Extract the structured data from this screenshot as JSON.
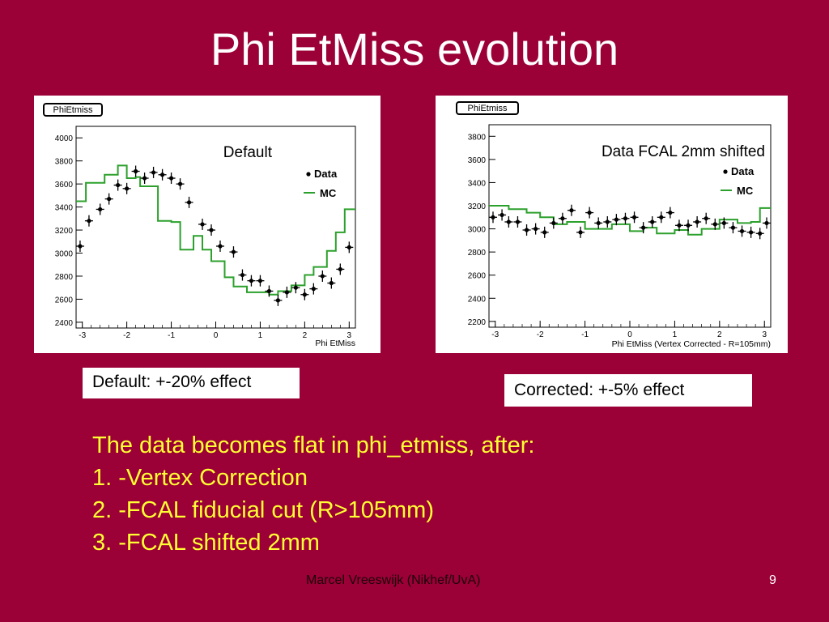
{
  "slide": {
    "title": "Phi EtMiss evolution",
    "background_color": "#9b0036",
    "text_color": "#ffff33",
    "note_left": "Default:  +-20% effect",
    "note_right": "Corrected:  +-5% effect",
    "body_lines": [
      "The data becomes flat in phi_etmiss, after:",
      "1. -Vertex Correction",
      "2. -FCAL fiducial cut (R>105mm)",
      "3. -FCAL shifted 2mm"
    ],
    "footer": "Marcel Vreeswijk (Nikhef/UvA)",
    "page_number": "9"
  },
  "chart_data": [
    {
      "type": "line",
      "title": "PhiEtmiss",
      "annotation": "Default",
      "xlabel": "Phi EtMiss",
      "ylabel": "",
      "xlim": [
        -3.14,
        3.14
      ],
      "ylim": [
        2350,
        4100
      ],
      "xticks": [
        -3,
        -2,
        -1,
        0,
        1,
        2,
        3
      ],
      "yticks": [
        2400,
        2600,
        2800,
        3000,
        3200,
        3400,
        3600,
        3800,
        4000
      ],
      "legend": {
        "placement": "top-right",
        "entries": [
          "Data",
          "MC"
        ]
      },
      "colors": {
        "data": "#000000",
        "mc": "#2ca02c"
      },
      "mc_bin_edges": [
        -3.14,
        -2.92,
        -2.5,
        -2.2,
        -2.0,
        -1.8,
        -1.7,
        -1.3,
        -1.0,
        -0.8,
        -0.5,
        -0.3,
        -0.1,
        0.2,
        0.4,
        0.7,
        1.0,
        1.2,
        1.4,
        1.7,
        2.0,
        2.2,
        2.5,
        2.7,
        2.9,
        3.14
      ],
      "mc_values": [
        3450,
        3610,
        3680,
        3760,
        3650,
        3660,
        3580,
        3280,
        3270,
        3030,
        3150,
        3030,
        2930,
        2790,
        2710,
        2660,
        2660,
        2640,
        2670,
        2720,
        2810,
        2880,
        3020,
        3180,
        3380
      ],
      "series": [
        {
          "name": "Data",
          "x": [
            -3.05,
            -2.85,
            -2.6,
            -2.4,
            -2.2,
            -2.0,
            -1.8,
            -1.6,
            -1.4,
            -1.2,
            -1.0,
            -0.8,
            -0.6,
            -0.3,
            -0.1,
            0.1,
            0.4,
            0.6,
            0.8,
            1.0,
            1.2,
            1.4,
            1.6,
            1.8,
            2.0,
            2.2,
            2.4,
            2.6,
            2.8,
            3.0
          ],
          "y": [
            3060,
            3280,
            3380,
            3470,
            3590,
            3560,
            3710,
            3650,
            3700,
            3680,
            3650,
            3600,
            3440,
            3250,
            3200,
            3060,
            3010,
            2810,
            2760,
            2760,
            2670,
            2590,
            2660,
            2700,
            2640,
            2690,
            2800,
            2740,
            2860,
            3050
          ]
        }
      ]
    },
    {
      "type": "line",
      "title": "PhiEtmiss",
      "annotation": "Data FCAL 2mm shifted",
      "xlabel": "Phi EtMiss (Vertex Corrected - R=105mm)",
      "ylabel": "",
      "xlim": [
        -3.14,
        3.14
      ],
      "ylim": [
        2150,
        3900
      ],
      "xticks": [
        -3,
        -2,
        -1,
        0,
        1,
        2,
        3
      ],
      "yticks": [
        2200,
        2400,
        2600,
        2800,
        3000,
        3200,
        3400,
        3600,
        3800
      ],
      "legend": {
        "placement": "top-right",
        "entries": [
          "Data",
          "MC"
        ]
      },
      "colors": {
        "data": "#000000",
        "mc": "#2ca02c"
      },
      "mc_bin_edges": [
        -3.14,
        -2.7,
        -2.3,
        -2.0,
        -1.7,
        -1.4,
        -1.0,
        -0.7,
        -0.4,
        0.0,
        0.3,
        0.6,
        1.0,
        1.3,
        1.6,
        2.0,
        2.4,
        2.7,
        2.9,
        3.14
      ],
      "mc_values": [
        3200,
        3170,
        3140,
        3100,
        3040,
        3060,
        3000,
        3000,
        3040,
        2980,
        3010,
        2960,
        2990,
        2950,
        3000,
        3080,
        3050,
        3060,
        3180
      ],
      "series": [
        {
          "name": "Data",
          "x": [
            -3.05,
            -2.85,
            -2.7,
            -2.5,
            -2.3,
            -2.1,
            -1.9,
            -1.7,
            -1.5,
            -1.3,
            -1.1,
            -0.9,
            -0.7,
            -0.5,
            -0.3,
            -0.1,
            0.1,
            0.3,
            0.5,
            0.7,
            0.9,
            1.1,
            1.3,
            1.5,
            1.7,
            1.9,
            2.1,
            2.3,
            2.5,
            2.7,
            2.9,
            3.05
          ],
          "y": [
            3100,
            3120,
            3060,
            3060,
            2990,
            3000,
            2970,
            3050,
            3090,
            3160,
            2970,
            3140,
            3050,
            3060,
            3080,
            3090,
            3100,
            3010,
            3060,
            3100,
            3140,
            3030,
            3030,
            3060,
            3090,
            3040,
            3050,
            3010,
            2980,
            2970,
            2960,
            3050
          ]
        }
      ]
    }
  ]
}
